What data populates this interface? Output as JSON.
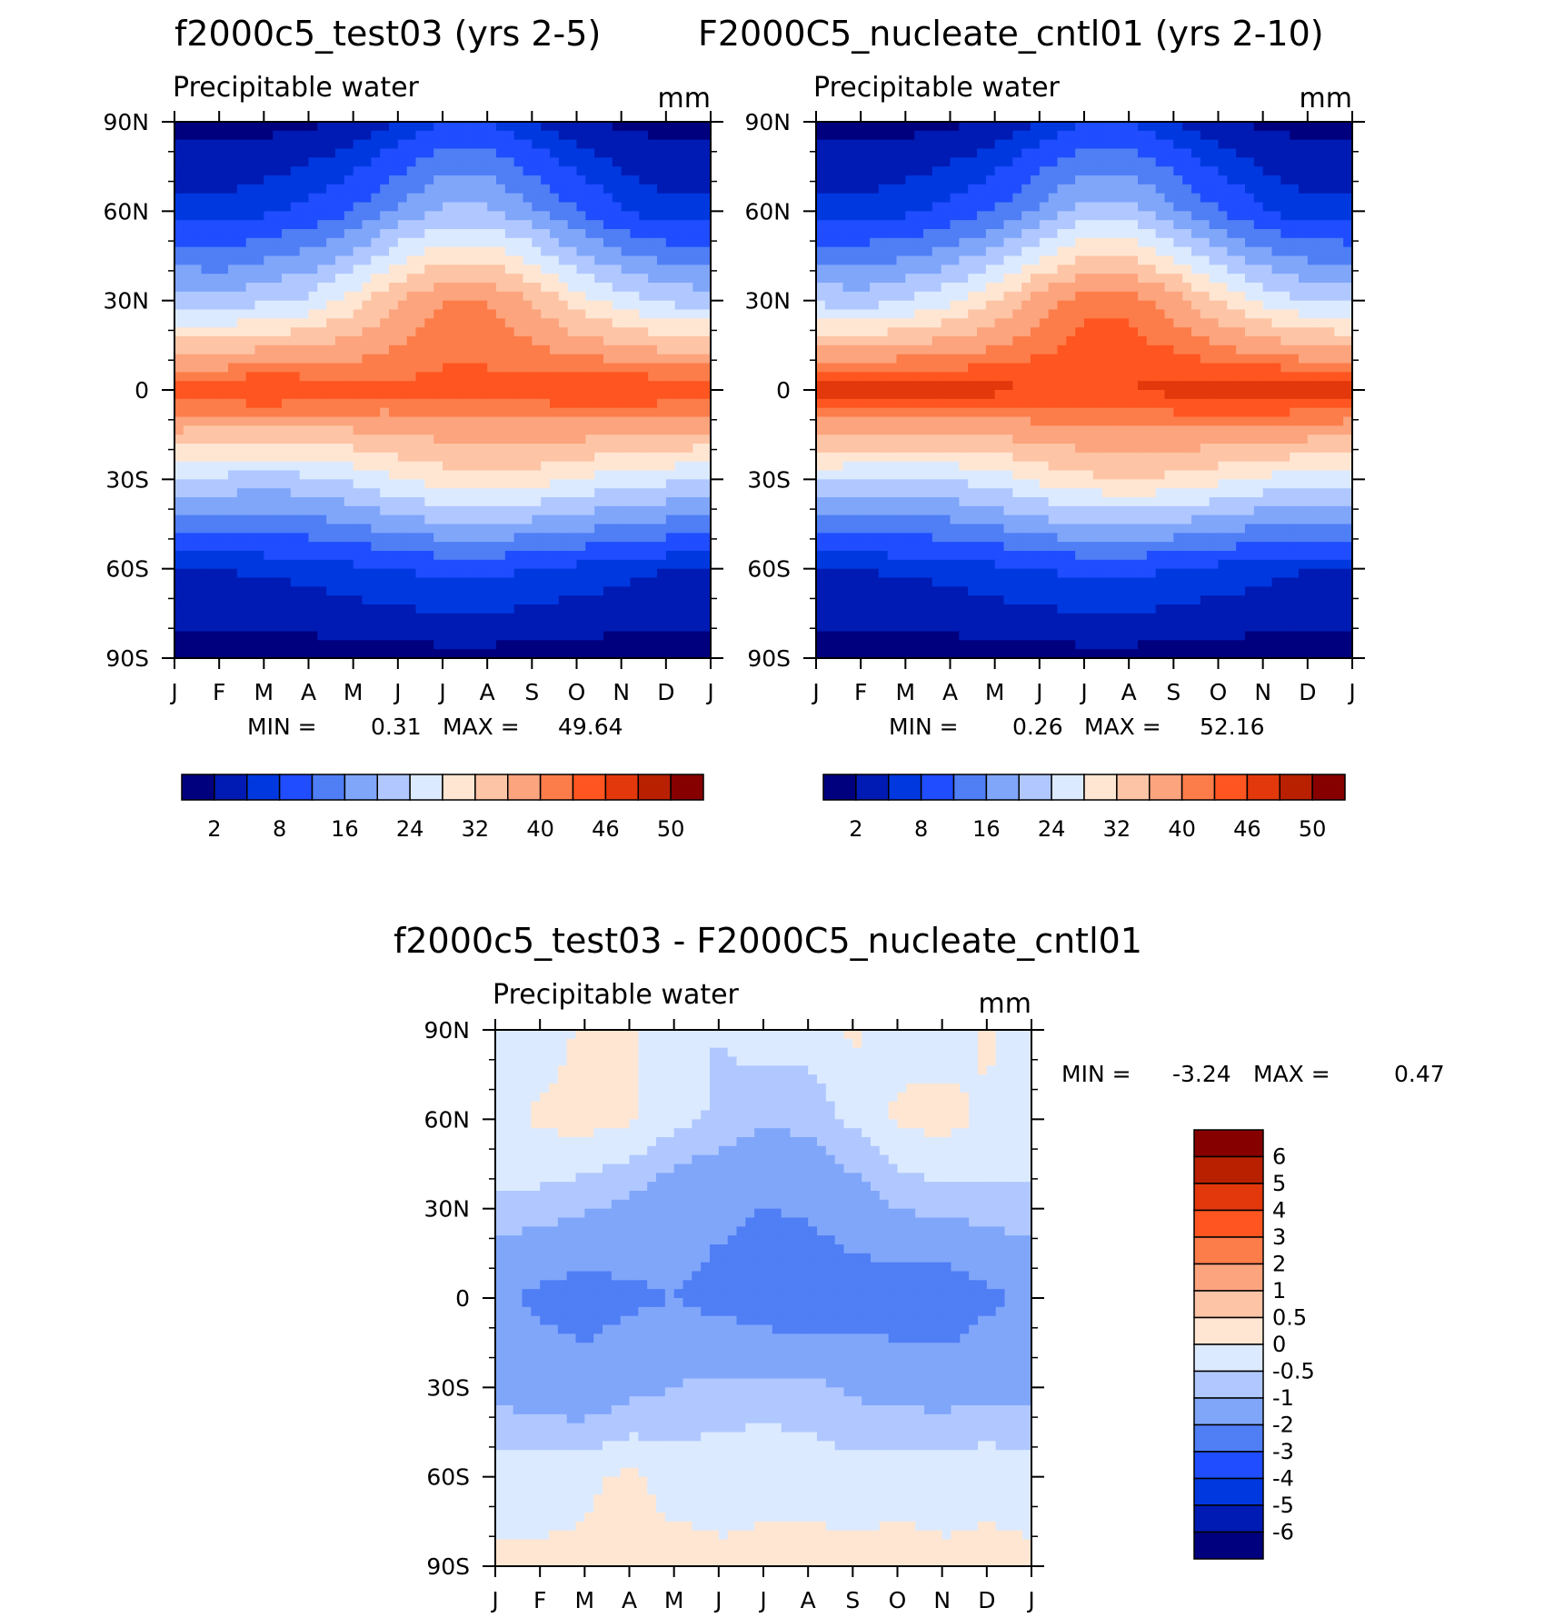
{
  "month_labels": [
    "J",
    "F",
    "M",
    "A",
    "M",
    "J",
    "J",
    "A",
    "S",
    "O",
    "N",
    "D",
    "J"
  ],
  "lat_labels": [
    "90N",
    "60N",
    "30N",
    "0",
    "30S",
    "60S",
    "90S"
  ],
  "seq_palette": [
    "#00007f",
    "#001bb3",
    "#0038e0",
    "#1f4dff",
    "#4f7ef5",
    "#80a6fa",
    "#b0c8ff",
    "#dceaff",
    "#ffe6d2",
    "#fdc4a6",
    "#fca47d",
    "#fc7d4a",
    "#ff5520",
    "#e3380b",
    "#b92000",
    "#870000"
  ],
  "seq_ticks": [
    "2",
    "8",
    "16",
    "24",
    "32",
    "40",
    "46",
    "50"
  ],
  "diff_palette": [
    "#00007f",
    "#001bb3",
    "#0038e0",
    "#1f4dff",
    "#4f7ef5",
    "#80a6fa",
    "#b0c8ff",
    "#dceaff",
    "#ffe6d2",
    "#fdc4a6",
    "#fca47d",
    "#fc7d4a",
    "#ff5520",
    "#e3380b",
    "#b92000",
    "#870000"
  ],
  "diff_ticks": [
    "6",
    "5",
    "4",
    "3",
    "2",
    "1",
    "0.5",
    "0",
    "-0.5",
    "-1",
    "-2",
    "-3",
    "-4",
    "-5",
    "-6"
  ],
  "chart_data": [
    {
      "type": "heatmap",
      "title": "f2000c5_test03 (yrs 2-5)",
      "subtitle": "Precipitable water",
      "units": "mm",
      "stats": {
        "min_label": "MIN =",
        "min": "0.31",
        "max_label": "MAX =",
        "max": "49.64"
      },
      "x": [
        "J",
        "F",
        "M",
        "A",
        "M",
        "J",
        "J",
        "A",
        "S",
        "O",
        "N",
        "D",
        "J"
      ],
      "y": [
        "90S",
        "60S",
        "30S",
        "0",
        "30N",
        "60N",
        "90N"
      ],
      "levels": [
        2,
        5,
        8,
        12,
        16,
        20,
        24,
        28,
        32,
        36,
        40,
        43,
        46,
        48,
        50
      ],
      "grid_lat": [
        -90,
        -60,
        -30,
        0,
        30,
        60,
        90
      ],
      "values": [
        [
          0.5,
          0.5,
          0.5,
          0.6,
          0.7,
          0.8,
          0.8,
          0.8,
          0.7,
          0.6,
          0.5,
          0.5,
          0.5
        ],
        [
          5,
          5,
          5.5,
          6,
          7,
          8,
          9,
          9,
          8,
          7,
          6,
          5,
          5
        ],
        [
          24,
          23,
          22,
          23,
          25,
          28,
          30,
          31,
          30,
          28,
          26,
          25,
          24
        ],
        [
          46,
          46,
          47,
          46,
          45,
          44,
          44,
          44,
          45,
          46,
          47,
          46,
          46
        ],
        [
          22,
          21,
          23,
          25,
          30,
          36,
          40,
          40,
          36,
          30,
          26,
          23,
          22
        ],
        [
          6,
          6,
          7,
          9,
          12,
          17,
          21,
          21,
          17,
          12,
          8,
          6,
          6
        ],
        [
          1,
          1,
          1,
          1.5,
          2.5,
          5,
          8,
          8,
          5,
          2.5,
          1.5,
          1,
          1
        ]
      ]
    },
    {
      "type": "heatmap",
      "title": "F2000C5_nucleate_cntl01 (yrs 2-10)",
      "subtitle": "Precipitable water",
      "units": "mm",
      "stats": {
        "min_label": "MIN =",
        "min": "0.26",
        "max_label": "MAX =",
        "max": "52.16"
      },
      "x": [
        "J",
        "F",
        "M",
        "A",
        "M",
        "J",
        "J",
        "A",
        "S",
        "O",
        "N",
        "D",
        "J"
      ],
      "y": [
        "90S",
        "60S",
        "30S",
        "0",
        "30N",
        "60N",
        "90N"
      ],
      "levels": [
        2,
        5,
        8,
        12,
        16,
        20,
        24,
        28,
        32,
        36,
        40,
        43,
        46,
        48,
        50
      ],
      "grid_lat": [
        -90,
        -60,
        -30,
        0,
        30,
        60,
        90
      ],
      "values": [
        [
          0.5,
          0.5,
          0.5,
          0.6,
          0.7,
          0.8,
          0.8,
          0.8,
          0.7,
          0.6,
          0.5,
          0.5,
          0.5
        ],
        [
          5,
          5,
          5.5,
          6,
          7,
          8,
          9,
          9,
          8,
          7,
          6,
          5,
          5
        ],
        [
          25,
          24,
          23,
          24,
          26,
          29,
          31,
          32,
          31,
          29,
          27,
          26,
          25
        ],
        [
          48,
          48,
          49,
          48,
          47,
          46,
          46,
          46,
          47,
          48,
          49,
          48,
          48
        ],
        [
          23,
          22,
          24,
          27,
          32,
          38,
          42,
          42,
          38,
          32,
          27,
          24,
          23
        ],
        [
          6,
          6,
          7,
          9,
          12,
          17,
          22,
          22,
          17,
          12,
          8,
          6,
          6
        ],
        [
          1,
          1,
          1,
          1.5,
          2.5,
          5,
          8,
          8,
          5,
          2.5,
          1.5,
          1,
          1
        ]
      ]
    },
    {
      "type": "heatmap",
      "title": "f2000c5_test03 - F2000C5_nucleate_cntl01",
      "subtitle": "Precipitable water",
      "units": "mm",
      "stats": {
        "min_label": "MIN =",
        "min": "-3.24",
        "max_label": "MAX =",
        "max": "0.47"
      },
      "x": [
        "J",
        "F",
        "M",
        "A",
        "M",
        "J",
        "J",
        "A",
        "S",
        "O",
        "N",
        "D",
        "J"
      ],
      "y": [
        "90S",
        "60S",
        "30S",
        "0",
        "30N",
        "60N",
        "90N"
      ],
      "levels": [
        -6,
        -5,
        -4,
        -3,
        -2,
        -1,
        -0.5,
        0,
        0.5,
        1,
        2,
        3,
        4,
        5,
        6
      ],
      "grid_lat": [
        -90,
        -60,
        -30,
        0,
        30,
        60,
        90
      ],
      "values": [
        [
          0.1,
          0.1,
          0.1,
          0.2,
          0.2,
          0.1,
          0.1,
          0.2,
          0.2,
          0.2,
          0.1,
          0.1,
          0.1
        ],
        [
          -0.2,
          -0.2,
          -0.1,
          0.1,
          -0.2,
          -0.2,
          -0.1,
          -0.2,
          -0.3,
          -0.2,
          -0.2,
          -0.1,
          -0.2
        ],
        [
          -1.2,
          -1.4,
          -1.5,
          -1.2,
          -1,
          -0.8,
          -0.8,
          -0.8,
          -1.1,
          -1.2,
          -1.3,
          -1.2,
          -1.2
        ],
        [
          -1.8,
          -2.2,
          -2.5,
          -2.2,
          -2,
          -2.3,
          -2.6,
          -2.8,
          -2.6,
          -2.7,
          -2.8,
          -2.2,
          -1.8
        ],
        [
          -0.6,
          -0.7,
          -0.9,
          -1.2,
          -1.6,
          -1.8,
          -2,
          -1.9,
          -1.4,
          -1,
          -0.8,
          -0.7,
          -0.6
        ],
        [
          -0.2,
          0.1,
          0.2,
          0.1,
          -0.3,
          -0.6,
          -0.9,
          -0.8,
          -0.4,
          0.1,
          0.2,
          -0.1,
          -0.2
        ],
        [
          -0.5,
          -0.3,
          0.1,
          0.1,
          -0.3,
          -0.5,
          -0.2,
          -0.3,
          0.1,
          -0.2,
          -0.3,
          0.1,
          -0.3
        ]
      ]
    }
  ]
}
